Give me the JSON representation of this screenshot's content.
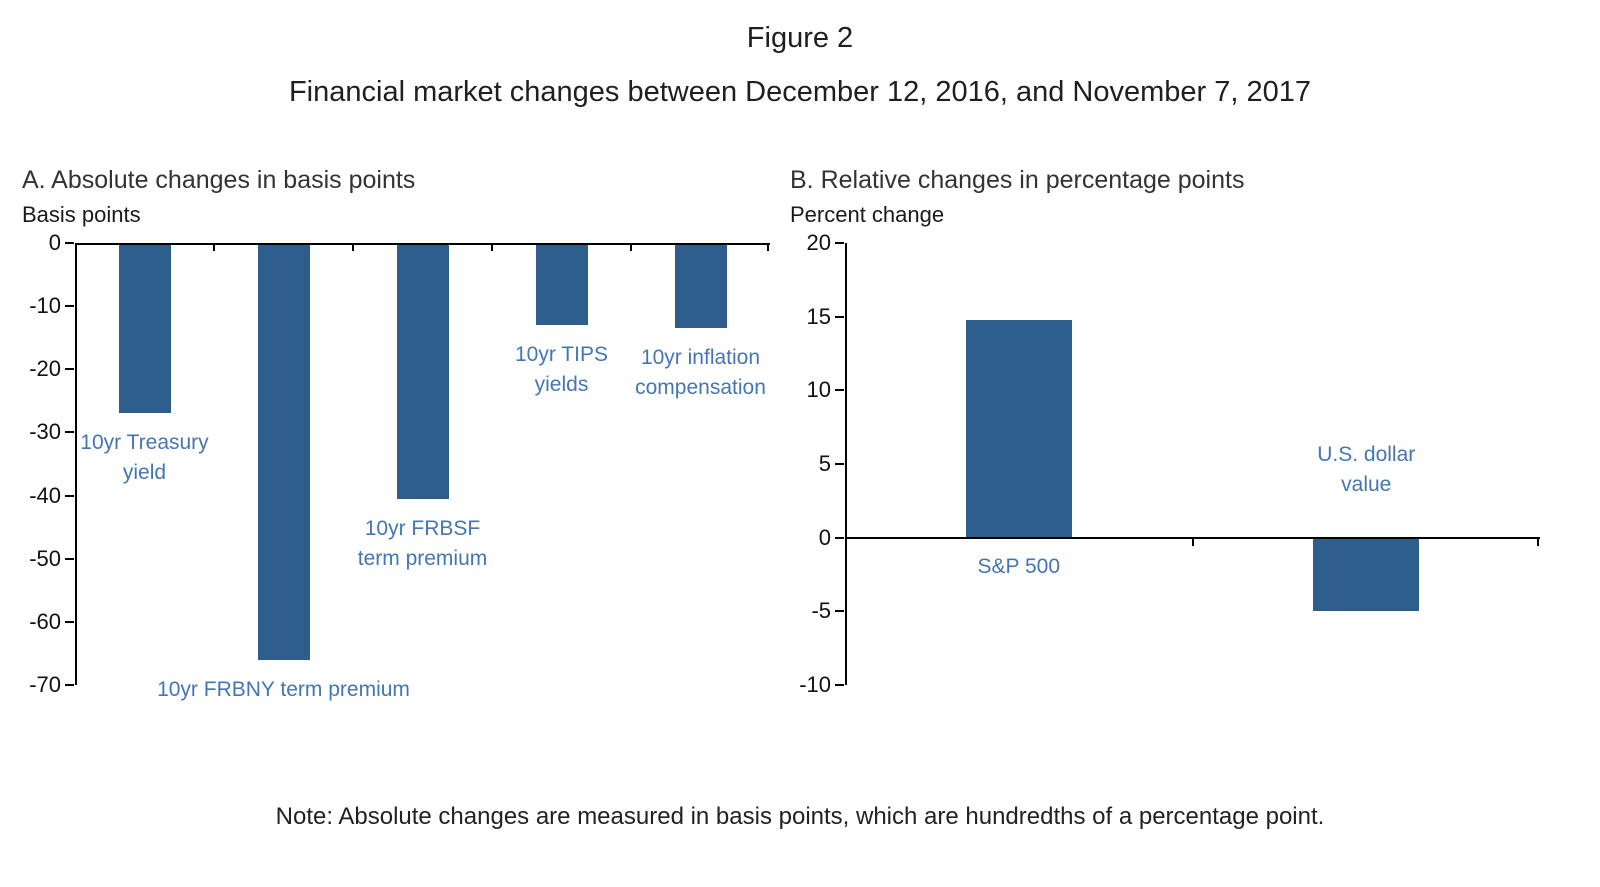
{
  "figure": {
    "title": "Figure 2",
    "subtitle": "Financial market changes between December 12, 2016, and November 7, 2017",
    "note": "Note: Absolute changes are measured in basis points, which are hundredths of a percentage point."
  },
  "colors": {
    "bar": "#2E5F8C",
    "label": "#4576B4",
    "axis": "#000000"
  },
  "chart_data": [
    {
      "type": "bar",
      "panel": "A",
      "title": "A. Absolute changes in basis points",
      "ylabel": "Basis points",
      "ylim": [
        -70,
        0
      ],
      "yticks": [
        0,
        -10,
        -20,
        -30,
        -40,
        -50,
        -60,
        -70
      ],
      "grid": false,
      "legend": "none",
      "label_placement": "below_bar",
      "categories": [
        "10yr Treasury yield",
        "10yr FRBNY term premium",
        "10yr FRBSF term premium",
        "10yr TIPS yields",
        "10yr inflation compensation"
      ],
      "values": [
        -27,
        -66,
        -40.5,
        -13,
        -13.5
      ],
      "label_lines": [
        [
          "10yr Treasury",
          "yield"
        ],
        [
          "10yr FRBNY term premium"
        ],
        [
          "10yr FRBSF",
          "term premium"
        ],
        [
          "10yr TIPS",
          "yields"
        ],
        [
          "10yr inflation",
          "compensation"
        ]
      ]
    },
    {
      "type": "bar",
      "panel": "B",
      "title": "B. Relative changes in percentage points",
      "ylabel": "Percent change",
      "ylim": [
        -10,
        20
      ],
      "yticks": [
        20,
        15,
        10,
        5,
        0,
        -5,
        -10
      ],
      "grid": false,
      "legend": "none",
      "label_placement": "opposite_axis",
      "categories": [
        "S&P 500",
        "U.S. dollar value"
      ],
      "values": [
        14.8,
        -5
      ],
      "label_lines": [
        [
          "S&P 500"
        ],
        [
          "U.S. dollar",
          "value"
        ]
      ]
    }
  ]
}
